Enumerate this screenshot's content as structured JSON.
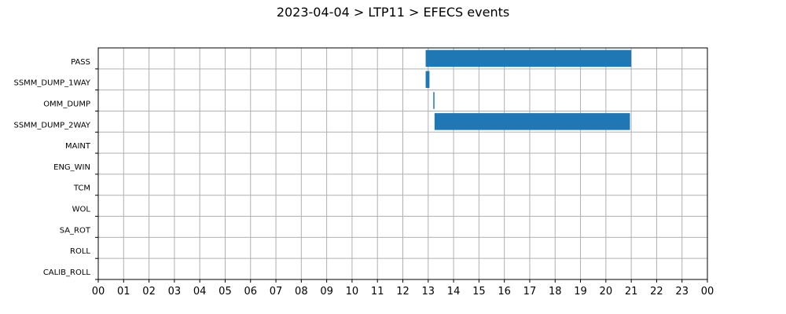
{
  "chart_data": {
    "type": "gantt",
    "title": "2023-04-04 > LTP11 > EFECS events",
    "xlabel": "",
    "ylabel": "",
    "x_unit": "hour",
    "xlim": [
      0,
      24
    ],
    "x_tick_values": [
      0,
      1,
      2,
      3,
      4,
      5,
      6,
      7,
      8,
      9,
      10,
      11,
      12,
      13,
      14,
      15,
      16,
      17,
      18,
      19,
      20,
      21,
      22,
      23,
      24
    ],
    "x_tick_labels": [
      "00",
      "01",
      "02",
      "03",
      "04",
      "05",
      "06",
      "07",
      "08",
      "09",
      "10",
      "11",
      "12",
      "13",
      "14",
      "15",
      "16",
      "17",
      "18",
      "19",
      "20",
      "21",
      "22",
      "23",
      "00"
    ],
    "categories": [
      "PASS",
      "SSMM_DUMP_1WAY",
      "OMM_DUMP",
      "SSMM_DUMP_2WAY",
      "MAINT",
      "ENG_WIN",
      "TCM",
      "WOL",
      "SA_ROT",
      "ROLL",
      "CALIB_ROLL"
    ],
    "grid": true,
    "bar_color": "#1f77b4",
    "events": [
      {
        "category": "PASS",
        "start": 12.9,
        "end": 21.0
      },
      {
        "category": "SSMM_DUMP_1WAY",
        "start": 12.9,
        "end": 13.05
      },
      {
        "category": "OMM_DUMP",
        "start": 13.2,
        "end": 13.22
      },
      {
        "category": "SSMM_DUMP_2WAY",
        "start": 13.25,
        "end": 20.95
      }
    ]
  }
}
